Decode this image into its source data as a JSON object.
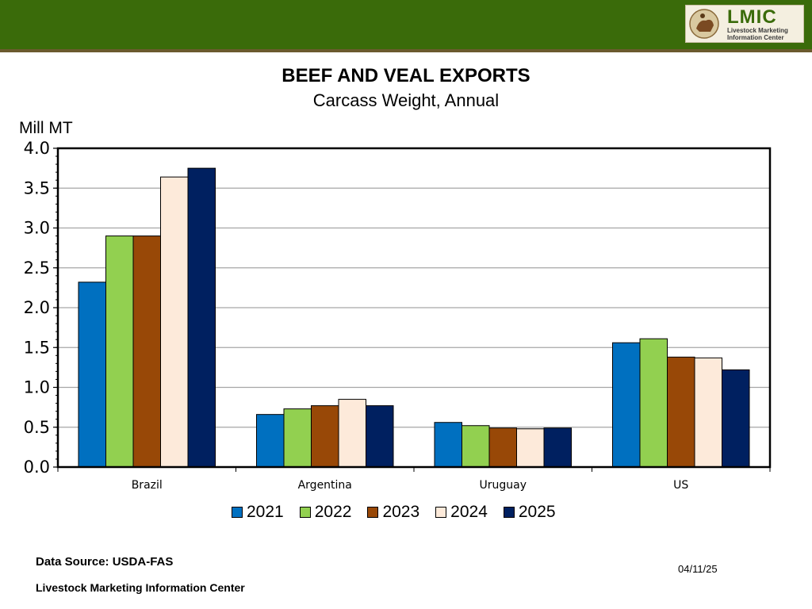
{
  "header": {
    "logo_title": "LMIC",
    "logo_subtitle_line1": "Livestock Marketing",
    "logo_subtitle_line2": "Information Center"
  },
  "footer": {
    "source": "Data Source:  USDA-FAS",
    "organization": "Livestock Marketing Information Center",
    "date": "04/11/25"
  },
  "colors": {
    "header_green": "#3a6b0a",
    "series": [
      "#0070c0",
      "#92d050",
      "#984807",
      "#fdeada",
      "#002060"
    ]
  },
  "chart_data": {
    "type": "bar",
    "title": "BEEF AND VEAL EXPORTS",
    "subtitle": "Carcass Weight, Annual",
    "ylabel": "Mill MT",
    "xlabel": "",
    "ylim": [
      0,
      4
    ],
    "yticks": [
      "0.0",
      "0.5",
      "1.0",
      "1.5",
      "2.0",
      "2.5",
      "3.0",
      "3.5",
      "4.0"
    ],
    "grid": true,
    "legend_position": "bottom",
    "categories": [
      "Brazil",
      "Argentina",
      "Uruguay",
      "US"
    ],
    "series": [
      {
        "name": "2021",
        "values": [
          2.32,
          0.66,
          0.56,
          1.56
        ]
      },
      {
        "name": "2022",
        "values": [
          2.9,
          0.73,
          0.52,
          1.61
        ]
      },
      {
        "name": "2023",
        "values": [
          2.9,
          0.77,
          0.49,
          1.38
        ]
      },
      {
        "name": "2024",
        "values": [
          3.64,
          0.85,
          0.48,
          1.37
        ]
      },
      {
        "name": "2025",
        "values": [
          3.75,
          0.77,
          0.49,
          1.22
        ]
      }
    ]
  }
}
